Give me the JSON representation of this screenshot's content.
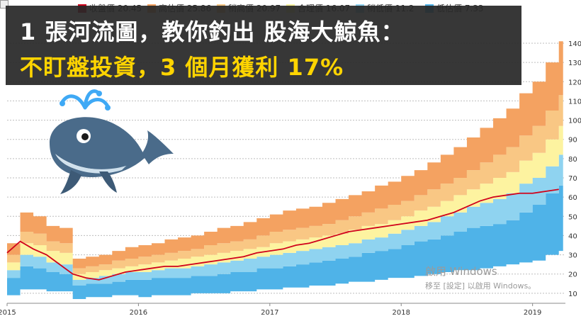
{
  "headline": {
    "line1": "1 張河流圖，教你釣出 股海大鯨魚：",
    "line2": "不盯盤投資，3 個月獲利 17%"
  },
  "watermark": {
    "line1": "啟用 Windows",
    "line2": "移至 [設定] 以啟用 Windows。"
  },
  "icons": {
    "whale": "whale-icon",
    "corner": "broken-image-icon"
  },
  "chart_data": {
    "type": "area",
    "x_ticks": [
      "2015",
      "2016",
      "2017",
      "2018",
      "2019"
    ],
    "y_ticks": [
      10,
      20,
      30,
      40,
      50,
      60,
      70,
      80,
      90,
      100,
      110,
      120,
      130,
      140
    ],
    "ylim": [
      7,
      147
    ],
    "legend": [
      {
        "label": "收盤價 20.45",
        "color": "#d0021b"
      },
      {
        "label": "高估價 25.86",
        "color": "#f4a261"
      },
      {
        "label": "稍高價 20.97",
        "color": "#f9c784"
      },
      {
        "label": "合理價 16.07",
        "color": "#fdf3a0"
      },
      {
        "label": "稍低價 11.2",
        "color": "#8fd3f0"
      },
      {
        "label": "低估價 7.33",
        "color": "#4fb3e8"
      }
    ],
    "series": {
      "t": [
        2015.0,
        2015.1,
        2015.2,
        2015.3,
        2015.4,
        2015.5,
        2015.6,
        2015.7,
        2015.8,
        2015.9,
        2016.0,
        2016.1,
        2016.2,
        2016.3,
        2016.4,
        2016.5,
        2016.6,
        2016.7,
        2016.8,
        2016.9,
        2017.0,
        2017.1,
        2017.2,
        2017.3,
        2017.4,
        2017.5,
        2017.6,
        2017.7,
        2017.8,
        2017.9,
        2018.0,
        2018.1,
        2018.2,
        2018.3,
        2018.4,
        2018.5,
        2018.6,
        2018.7,
        2018.8,
        2018.9,
        2019.0,
        2019.1,
        2019.2
      ],
      "b0": [
        9,
        12,
        12,
        11,
        11,
        7,
        8,
        8,
        9,
        9,
        8,
        9,
        9,
        9,
        10,
        10,
        10,
        11,
        11,
        12,
        12,
        13,
        13,
        14,
        14,
        15,
        16,
        16,
        17,
        18,
        18,
        19,
        20,
        21,
        22,
        22,
        23,
        24,
        25,
        26,
        27,
        30,
        32
      ],
      "b1": [
        18,
        24,
        23,
        21,
        20,
        14,
        15,
        15,
        16,
        17,
        17,
        18,
        18,
        18,
        19,
        19,
        20,
        21,
        21,
        23,
        23,
        24,
        25,
        26,
        27,
        28,
        29,
        31,
        32,
        33,
        35,
        37,
        38,
        40,
        42,
        44,
        45,
        46,
        48,
        52,
        56,
        62,
        66
      ],
      "b2": [
        22,
        30,
        29,
        26,
        25,
        17,
        18,
        19,
        20,
        21,
        21,
        22,
        23,
        23,
        24,
        25,
        26,
        27,
        28,
        29,
        30,
        31,
        32,
        33,
        34,
        35,
        36,
        38,
        39,
        41,
        43,
        45,
        47,
        50,
        52,
        55,
        57,
        59,
        62,
        67,
        70,
        76,
        82
      ],
      "b3": [
        26,
        36,
        35,
        32,
        31,
        20,
        21,
        22,
        23,
        24,
        25,
        26,
        27,
        28,
        29,
        30,
        31,
        32,
        33,
        34,
        36,
        37,
        38,
        39,
        40,
        41,
        43,
        45,
        46,
        48,
        50,
        53,
        55,
        58,
        61,
        64,
        67,
        70,
        73,
        79,
        83,
        90,
        97
      ],
      "b4": [
        30,
        42,
        41,
        37,
        36,
        23,
        24,
        25,
        27,
        28,
        29,
        30,
        31,
        32,
        33,
        35,
        36,
        37,
        38,
        40,
        42,
        43,
        44,
        45,
        46,
        48,
        50,
        52,
        54,
        56,
        58,
        61,
        64,
        67,
        70,
        74,
        78,
        82,
        86,
        92,
        97,
        105,
        113
      ],
      "b5": [
        36,
        52,
        50,
        45,
        44,
        28,
        29,
        30,
        32,
        34,
        35,
        36,
        38,
        39,
        40,
        42,
        44,
        45,
        47,
        49,
        51,
        53,
        54,
        55,
        57,
        59,
        61,
        63,
        66,
        68,
        71,
        74,
        78,
        82,
        86,
        91,
        96,
        101,
        106,
        114,
        120,
        130,
        141
      ],
      "close": [
        31,
        37,
        33,
        30,
        25,
        20,
        18,
        17,
        19,
        21,
        22,
        23,
        24,
        24,
        25,
        26,
        27,
        28,
        29,
        31,
        32,
        33,
        35,
        36,
        38,
        40,
        42,
        43,
        44,
        45,
        46,
        47,
        48,
        50,
        52,
        55,
        58,
        60,
        61,
        62,
        62,
        63,
        64
      ]
    }
  }
}
